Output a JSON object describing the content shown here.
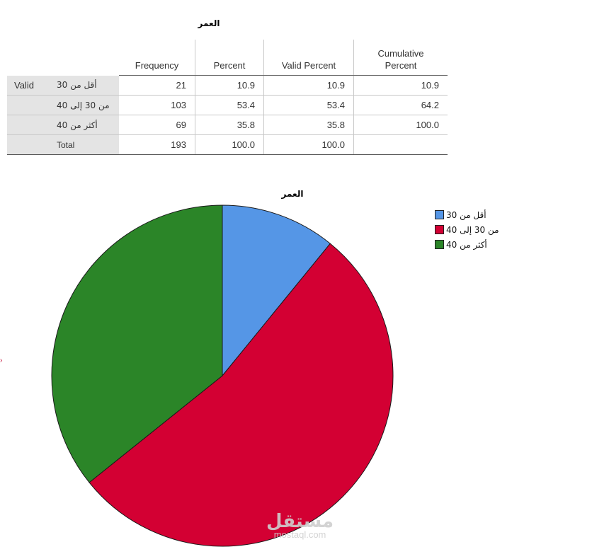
{
  "table": {
    "title": "العمر",
    "headers": [
      "Frequency",
      "Percent",
      "Valid Percent",
      "Cumulative Percent"
    ],
    "group_label": "Valid",
    "rows": [
      {
        "label": "أقل من 30",
        "frequency": "21",
        "percent": "10.9",
        "valid_percent": "10.9",
        "cumulative": "10.9"
      },
      {
        "label": "من 30 إلى 40",
        "frequency": "103",
        "percent": "53.4",
        "valid_percent": "53.4",
        "cumulative": "64.2"
      },
      {
        "label": "أكثر من 40",
        "frequency": "69",
        "percent": "35.8",
        "valid_percent": "35.8",
        "cumulative": "100.0"
      },
      {
        "label": "Total",
        "frequency": "193",
        "percent": "100.0",
        "valid_percent": "100.0",
        "cumulative": ""
      }
    ]
  },
  "chart_data": {
    "type": "pie",
    "title": "العمر",
    "categories": [
      "أقل من 30",
      "من 30 إلى 40",
      "أكثر من 40"
    ],
    "values": [
      10.9,
      53.4,
      35.8
    ],
    "colors": [
      "#5596e6",
      "#d30033",
      "#2b8528"
    ],
    "legend_position": "top-right",
    "start_angle": "12 o'clock, clockwise"
  },
  "watermark": {
    "logo": "مستقل",
    "url": "mostaql.com"
  }
}
